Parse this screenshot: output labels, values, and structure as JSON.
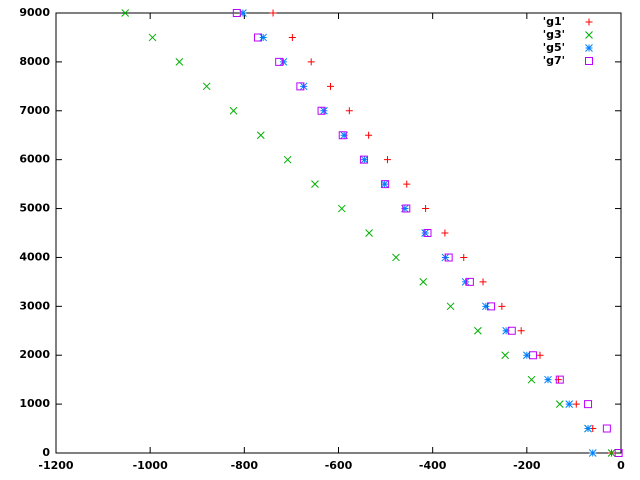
{
  "chart_data": {
    "type": "scatter",
    "xlim": [
      -1200,
      0
    ],
    "ylim": [
      0,
      9000
    ],
    "xticks": [
      -1200,
      -1000,
      -800,
      -600,
      -400,
      -200,
      0
    ],
    "yticks": [
      0,
      1000,
      2000,
      3000,
      4000,
      5000,
      6000,
      7000,
      8000,
      9000
    ],
    "legend": "top-right",
    "series": [
      {
        "name": "'g1'",
        "color": "#ff0000",
        "marker": "plus",
        "x": [
          -20,
          -60,
          -95,
          -133,
          -172,
          -212,
          -253,
          -293,
          -334,
          -374,
          -415,
          -455,
          -496,
          -536,
          -577,
          -617,
          -658,
          -698,
          -739
        ],
        "values": [
          0,
          500,
          1000,
          1500,
          2000,
          2500,
          3000,
          3500,
          4000,
          4500,
          5000,
          5500,
          6000,
          6500,
          7000,
          7500,
          8000,
          8500,
          9000
        ]
      },
      {
        "name": "'g3'",
        "color": "#00b000",
        "marker": "cross",
        "x": [
          -20,
          -70,
          -130,
          -190,
          -246,
          -304,
          -362,
          -420,
          -478,
          -535,
          -593,
          -650,
          -708,
          -765,
          -823,
          -880,
          -938,
          -995,
          -1053
        ],
        "values": [
          0,
          500,
          1000,
          1500,
          2000,
          2500,
          3000,
          3500,
          4000,
          4500,
          5000,
          5500,
          6000,
          6500,
          7000,
          7500,
          8000,
          8500,
          9000
        ]
      },
      {
        "name": "'g5'",
        "color": "#0080ff",
        "marker": "star",
        "x": [
          -60,
          -70,
          -110,
          -155,
          -200,
          -244,
          -287,
          -330,
          -373,
          -416,
          -459,
          -502,
          -545,
          -588,
          -631,
          -674,
          -717,
          -760,
          -803
        ],
        "values": [
          0,
          500,
          1000,
          1500,
          2000,
          2500,
          3000,
          3500,
          4000,
          4500,
          5000,
          5500,
          6000,
          6500,
          7000,
          7500,
          8000,
          8500,
          9000
        ]
      },
      {
        "name": "'g7'",
        "color": "#c000ff",
        "marker": "square",
        "x": [
          -5,
          -30,
          -70,
          -130,
          -187,
          -232,
          -276,
          -321,
          -366,
          -411,
          -456,
          -501,
          -546,
          -591,
          -636,
          -681,
          -726,
          -771,
          -816
        ],
        "values": [
          0,
          500,
          1000,
          1500,
          2000,
          2500,
          3000,
          3500,
          4000,
          4500,
          5000,
          5500,
          6000,
          6500,
          7000,
          7500,
          8000,
          8500,
          9000
        ]
      }
    ]
  }
}
